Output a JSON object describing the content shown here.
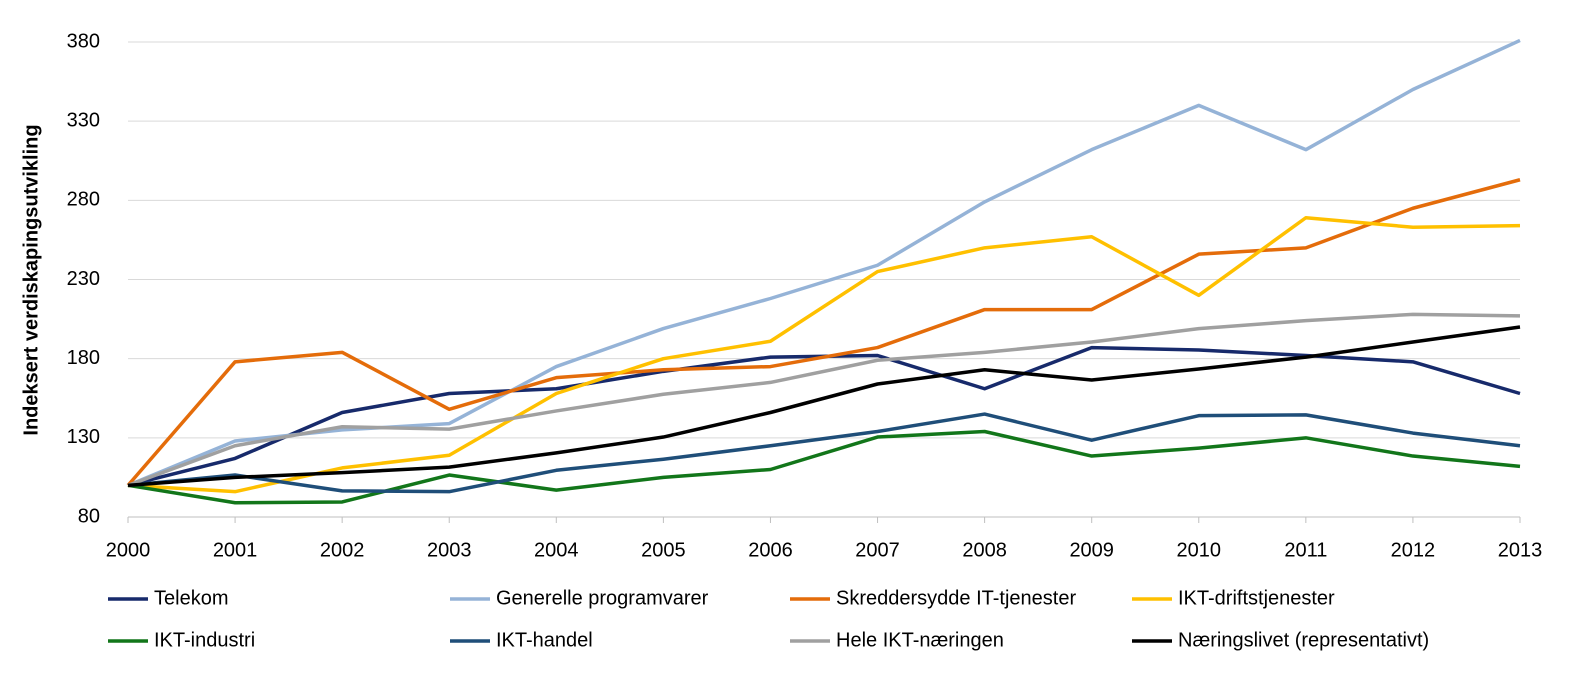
{
  "chart_data": {
    "type": "line",
    "y_label": "Indeksert verdiskapingsutvikling",
    "x": [
      2000,
      2001,
      2002,
      2003,
      2004,
      2005,
      2006,
      2007,
      2008,
      2009,
      2010,
      2011,
      2012,
      2013
    ],
    "xlim": [
      2000,
      2013
    ],
    "xticks": [
      2000,
      2001,
      2002,
      2003,
      2004,
      2005,
      2006,
      2007,
      2008,
      2009,
      2010,
      2011,
      2012,
      2013
    ],
    "ylim": [
      80,
      380
    ],
    "yticks": [
      80,
      130,
      180,
      230,
      280,
      330,
      380
    ],
    "grid": true,
    "legend_position": "bottom",
    "series": [
      {
        "name": "Telekom",
        "color": "#172a6b",
        "values": [
          100,
          117,
          146,
          158,
          161,
          172,
          181,
          182,
          161,
          187,
          185.5,
          182,
          178,
          158
        ]
      },
      {
        "name": "Generelle programvarer",
        "color": "#95b3d7",
        "values": [
          100,
          128,
          135,
          139,
          175,
          199,
          218,
          239,
          279,
          312,
          340,
          312,
          350,
          381
        ]
      },
      {
        "name": "Skreddersydde IT-tjenester",
        "color": "#e46c0a",
        "values": [
          100,
          178,
          184,
          148,
          168,
          173,
          175,
          187,
          211,
          211,
          246,
          250,
          275,
          293
        ]
      },
      {
        "name": "IKT-driftstjenester",
        "color": "#ffc000",
        "values": [
          100,
          96,
          111,
          119,
          158,
          180,
          191,
          235,
          250,
          257,
          220,
          269,
          263,
          264
        ]
      },
      {
        "name": "IKT-industri",
        "color": "#12761a",
        "values": [
          100,
          89,
          89.5,
          106.5,
          97,
          105,
          110,
          130.5,
          134,
          118.5,
          123.5,
          130,
          118.5,
          112
        ]
      },
      {
        "name": "IKT-handel",
        "color": "#1f4e79",
        "values": [
          100,
          106.5,
          96.5,
          96,
          109.5,
          116.5,
          125,
          134,
          145,
          128.5,
          144,
          144.5,
          133,
          125
        ]
      },
      {
        "name": "Hele IKT-næringen",
        "color": "#a0a0a0",
        "values": [
          100,
          125,
          137,
          135.5,
          147,
          157.5,
          165,
          179,
          184,
          190.5,
          199,
          204,
          208,
          207
        ]
      },
      {
        "name": "Næringslivet (representativt)",
        "color": "#000000",
        "values": [
          100,
          105,
          108,
          111.5,
          120.5,
          130.5,
          146,
          164,
          173,
          166.5,
          173.5,
          181,
          190.5,
          200
        ]
      }
    ]
  }
}
